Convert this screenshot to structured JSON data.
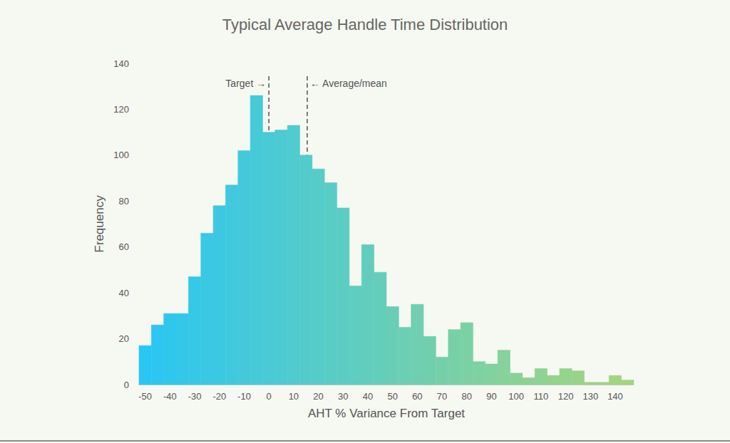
{
  "chart_data": {
    "type": "histogram",
    "title": "Typical Average Handle Time Distribution",
    "xlabel": "AHT % Variance From Target",
    "ylabel": "Frequency",
    "bins": [
      -52.5,
      -47.5,
      -42.5,
      -37.5,
      -32.5,
      -27.5,
      -22.5,
      -17.5,
      -12.5,
      -7.5,
      -2.5,
      2.5,
      7.5,
      12.5,
      17.5,
      22.5,
      27.5,
      32.5,
      37.5,
      42.5,
      47.5,
      52.5,
      57.5,
      62.5,
      67.5,
      72.5,
      77.5,
      82.5,
      87.5,
      92.5,
      97.5,
      102.5,
      107.5,
      112.5,
      117.5,
      122.5,
      127.5,
      132.5,
      137.5,
      142.5,
      147.5
    ],
    "counts": [
      17,
      26,
      31,
      31,
      47,
      66,
      78,
      87,
      102,
      126,
      110,
      111,
      113,
      100,
      94,
      88,
      77,
      43,
      61,
      49,
      34,
      25,
      35,
      21,
      12,
      24,
      27,
      10,
      9,
      15,
      5,
      3,
      7,
      4,
      7,
      6,
      1,
      1,
      4,
      2
    ],
    "colors": [
      "#2ac6f3",
      "#2dc6f0",
      "#30c7ed",
      "#33c7ea",
      "#37c8e7",
      "#3ac8e4",
      "#3dc8e1",
      "#40c9de",
      "#43c9db",
      "#46cad8",
      "#49cad5",
      "#4ccbd2",
      "#50cbcf",
      "#53cbcc",
      "#56ccc9",
      "#59ccc6",
      "#5ccdc3",
      "#5fcdc0",
      "#62cdbd",
      "#65ceba",
      "#69ceb6",
      "#6ccfb3",
      "#6fcfb0",
      "#72cfad",
      "#75d0aa",
      "#78d0a7",
      "#7bd1a4",
      "#7ed1a1",
      "#82d19e",
      "#85d29b",
      "#88d298",
      "#8bd395",
      "#8ed392",
      "#91d38f",
      "#94d48c",
      "#97d489",
      "#9bd586",
      "#9ed583",
      "#a1d580",
      "#a4d67d"
    ],
    "xlim": [
      -52.5,
      147.5
    ],
    "xticks": [
      -50,
      -40,
      -30,
      -20,
      -10,
      0,
      10,
      20,
      30,
      40,
      50,
      60,
      70,
      80,
      90,
      100,
      110,
      120,
      130,
      140
    ],
    "ylim": [
      0,
      140
    ],
    "yticks": [
      0,
      20,
      40,
      60,
      80,
      100,
      120,
      140
    ],
    "grid": false,
    "annotations": [
      {
        "text": "Target →",
        "x": 0,
        "line_style": "dashed"
      },
      {
        "text": "← Average/mean",
        "x": 15.5,
        "line_style": "dashed"
      }
    ]
  }
}
